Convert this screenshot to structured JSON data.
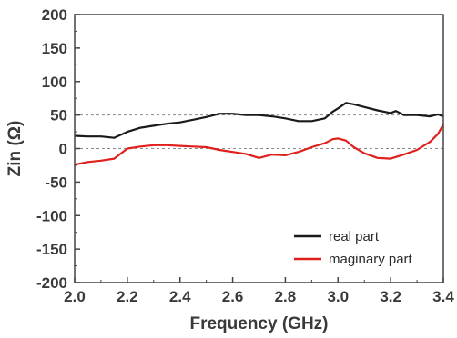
{
  "chart_data": {
    "type": "line",
    "title": "",
    "xlabel": "Frequency (GHz)",
    "ylabel": "Zin (Ω)",
    "xlim": [
      2.0,
      3.4
    ],
    "ylim": [
      -200,
      200
    ],
    "xticks": [
      "2.0",
      "2.2",
      "2.4",
      "2.6",
      "2.8",
      "3.0",
      "3.2",
      "3.4"
    ],
    "yticks": [
      "200",
      "150",
      "100",
      "50",
      "0",
      "-50",
      "-100",
      "-150",
      "-200"
    ],
    "grid": false,
    "reference_lines": [
      50,
      0
    ],
    "legend_position": "bottom-right",
    "series": [
      {
        "name": "real part",
        "color": "#1a1a1a",
        "x": [
          2.0,
          2.05,
          2.1,
          2.15,
          2.2,
          2.25,
          2.3,
          2.35,
          2.4,
          2.45,
          2.5,
          2.55,
          2.6,
          2.65,
          2.7,
          2.75,
          2.8,
          2.85,
          2.9,
          2.95,
          2.98,
          3.0,
          3.03,
          3.06,
          3.1,
          3.15,
          3.2,
          3.22,
          3.25,
          3.3,
          3.35,
          3.38,
          3.4
        ],
        "y": [
          19,
          18,
          18,
          16,
          25,
          31,
          34,
          37,
          39,
          43,
          47,
          52,
          52,
          50,
          50,
          48,
          45,
          41,
          41,
          45,
          55,
          60,
          68,
          66,
          62,
          57,
          53,
          56,
          50,
          50,
          48,
          51,
          48
        ]
      },
      {
        "name": "maginary part",
        "color": "#e0201c",
        "x": [
          2.0,
          2.05,
          2.1,
          2.15,
          2.2,
          2.25,
          2.3,
          2.35,
          2.4,
          2.45,
          2.5,
          2.55,
          2.6,
          2.65,
          2.7,
          2.75,
          2.8,
          2.85,
          2.9,
          2.95,
          2.98,
          3.0,
          3.03,
          3.06,
          3.1,
          3.15,
          3.2,
          3.25,
          3.3,
          3.35,
          3.38,
          3.4
        ],
        "y": [
          -24,
          -20,
          -18,
          -15,
          0,
          3,
          5,
          5,
          4,
          3,
          2,
          -2,
          -5,
          -8,
          -14,
          -9,
          -10,
          -5,
          2,
          8,
          14,
          15,
          12,
          2,
          -7,
          -14,
          -15,
          -9,
          -2,
          10,
          22,
          36
        ]
      }
    ]
  }
}
